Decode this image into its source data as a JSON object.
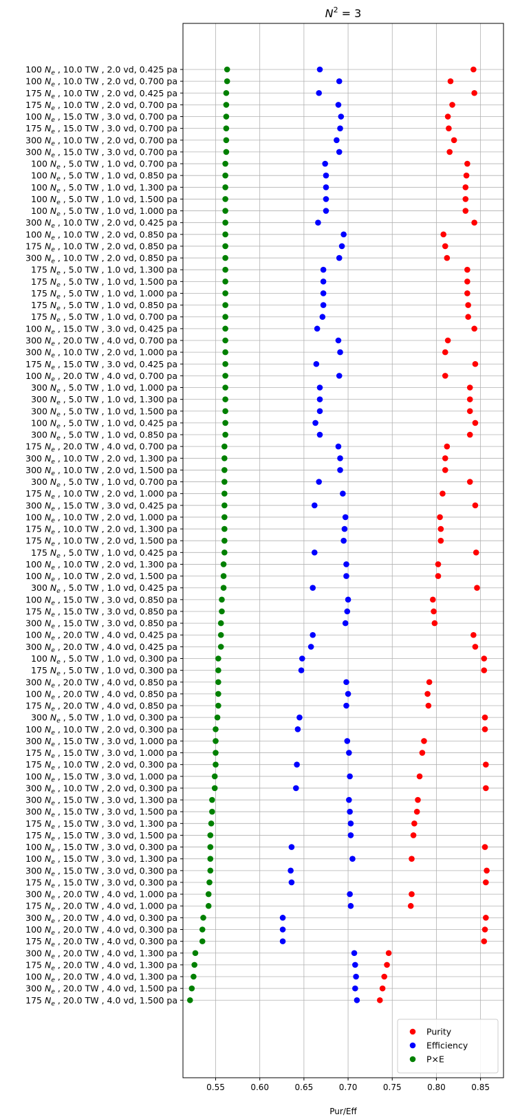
{
  "chart_data": {
    "type": "scatter",
    "title_main": "N",
    "title_sup": "2",
    "title_rest": " = 3",
    "xlabel": "Pur/Eff",
    "xlim": [
      0.513,
      0.876
    ],
    "xticks": [
      0.55,
      0.6,
      0.65,
      0.7,
      0.75,
      0.8,
      0.85
    ],
    "xtick_labels": [
      "0.55",
      "0.60",
      "0.65",
      "0.70",
      "0.75",
      "0.80",
      "0.85"
    ],
    "grid": true,
    "legend_position": "bottom-right",
    "ne_symbol": "N",
    "ne_sub": "e",
    "series_colors": {
      "purity": "#ff0000",
      "efficiency": "#0000ff",
      "pxe": "#008000"
    },
    "series": [
      {
        "key": "purity",
        "name": "Purity",
        "color": "#ff0000"
      },
      {
        "key": "efficiency",
        "name": "Efficiency",
        "color": "#0000ff"
      },
      {
        "key": "pxe",
        "name": "P×E",
        "color": "#008000"
      }
    ],
    "rows": [
      {
        "n": "100",
        "rest": ", 10.0 TW , 2.0 vd, 0.425 pa",
        "purity": 0.842,
        "efficiency": 0.668,
        "pxe": 0.563
      },
      {
        "n": "100",
        "rest": ", 10.0 TW , 2.0 vd, 0.700 pa",
        "purity": 0.816,
        "efficiency": 0.69,
        "pxe": 0.563
      },
      {
        "n": "175",
        "rest": ", 10.0 TW , 2.0 vd, 0.425 pa",
        "purity": 0.843,
        "efficiency": 0.667,
        "pxe": 0.562
      },
      {
        "n": "175",
        "rest": ", 10.0 TW , 2.0 vd, 0.700 pa",
        "purity": 0.818,
        "efficiency": 0.689,
        "pxe": 0.562
      },
      {
        "n": "100",
        "rest": ", 15.0 TW , 3.0 vd, 0.700 pa",
        "purity": 0.813,
        "efficiency": 0.692,
        "pxe": 0.562
      },
      {
        "n": "175",
        "rest": ", 15.0 TW , 3.0 vd, 0.700 pa",
        "purity": 0.814,
        "efficiency": 0.691,
        "pxe": 0.562
      },
      {
        "n": "300",
        "rest": ", 10.0 TW , 2.0 vd, 0.700 pa",
        "purity": 0.82,
        "efficiency": 0.687,
        "pxe": 0.562
      },
      {
        "n": "300",
        "rest": ", 15.0 TW , 3.0 vd, 0.700 pa",
        "purity": 0.815,
        "efficiency": 0.69,
        "pxe": 0.562
      },
      {
        "n": "100",
        "rest": ", 5.0 TW , 1.0 vd, 0.700 pa",
        "purity": 0.835,
        "efficiency": 0.674,
        "pxe": 0.561
      },
      {
        "n": "100",
        "rest": ", 5.0 TW , 1.0 vd, 0.850 pa",
        "purity": 0.834,
        "efficiency": 0.675,
        "pxe": 0.561
      },
      {
        "n": "100",
        "rest": ", 5.0 TW , 1.0 vd, 1.300 pa",
        "purity": 0.833,
        "efficiency": 0.675,
        "pxe": 0.561
      },
      {
        "n": "100",
        "rest": ", 5.0 TW , 1.0 vd, 1.500 pa",
        "purity": 0.833,
        "efficiency": 0.675,
        "pxe": 0.561
      },
      {
        "n": "100",
        "rest": ", 5.0 TW , 1.0 vd, 1.000 pa",
        "purity": 0.833,
        "efficiency": 0.675,
        "pxe": 0.561
      },
      {
        "n": "300",
        "rest": ", 10.0 TW , 2.0 vd, 0.425 pa",
        "purity": 0.843,
        "efficiency": 0.666,
        "pxe": 0.561
      },
      {
        "n": "100",
        "rest": ", 10.0 TW , 2.0 vd, 0.850 pa",
        "purity": 0.808,
        "efficiency": 0.695,
        "pxe": 0.561
      },
      {
        "n": "175",
        "rest": ", 10.0 TW , 2.0 vd, 0.850 pa",
        "purity": 0.81,
        "efficiency": 0.693,
        "pxe": 0.561
      },
      {
        "n": "300",
        "rest": ", 10.0 TW , 2.0 vd, 0.850 pa",
        "purity": 0.812,
        "efficiency": 0.69,
        "pxe": 0.561
      },
      {
        "n": "175",
        "rest": ", 5.0 TW , 1.0 vd, 1.300 pa",
        "purity": 0.835,
        "efficiency": 0.672,
        "pxe": 0.561
      },
      {
        "n": "175",
        "rest": ", 5.0 TW , 1.0 vd, 1.500 pa",
        "purity": 0.835,
        "efficiency": 0.672,
        "pxe": 0.561
      },
      {
        "n": "175",
        "rest": ", 5.0 TW , 1.0 vd, 1.000 pa",
        "purity": 0.835,
        "efficiency": 0.672,
        "pxe": 0.561
      },
      {
        "n": "175",
        "rest": ", 5.0 TW , 1.0 vd, 0.850 pa",
        "purity": 0.836,
        "efficiency": 0.672,
        "pxe": 0.561
      },
      {
        "n": "175",
        "rest": ", 5.0 TW , 1.0 vd, 0.700 pa",
        "purity": 0.836,
        "efficiency": 0.671,
        "pxe": 0.561
      },
      {
        "n": "100",
        "rest": ", 15.0 TW , 3.0 vd, 0.425 pa",
        "purity": 0.843,
        "efficiency": 0.665,
        "pxe": 0.561
      },
      {
        "n": "300",
        "rest": ", 20.0 TW , 4.0 vd, 0.700 pa",
        "purity": 0.813,
        "efficiency": 0.689,
        "pxe": 0.561
      },
      {
        "n": "300",
        "rest": ", 10.0 TW , 2.0 vd, 1.000 pa",
        "purity": 0.81,
        "efficiency": 0.691,
        "pxe": 0.561
      },
      {
        "n": "175",
        "rest": ", 15.0 TW , 3.0 vd, 0.425 pa",
        "purity": 0.844,
        "efficiency": 0.664,
        "pxe": 0.561
      },
      {
        "n": "100",
        "rest": ", 20.0 TW , 4.0 vd, 0.700 pa",
        "purity": 0.81,
        "efficiency": 0.69,
        "pxe": 0.561
      },
      {
        "n": "300",
        "rest": ", 5.0 TW , 1.0 vd, 1.000 pa",
        "purity": 0.838,
        "efficiency": 0.668,
        "pxe": 0.561
      },
      {
        "n": "300",
        "rest": ", 5.0 TW , 1.0 vd, 1.300 pa",
        "purity": 0.838,
        "efficiency": 0.668,
        "pxe": 0.561
      },
      {
        "n": "300",
        "rest": ", 5.0 TW , 1.0 vd, 1.500 pa",
        "purity": 0.838,
        "efficiency": 0.668,
        "pxe": 0.561
      },
      {
        "n": "100",
        "rest": ", 5.0 TW , 1.0 vd, 0.425 pa",
        "purity": 0.844,
        "efficiency": 0.663,
        "pxe": 0.561
      },
      {
        "n": "300",
        "rest": ", 5.0 TW , 1.0 vd, 0.850 pa",
        "purity": 0.838,
        "efficiency": 0.668,
        "pxe": 0.561
      },
      {
        "n": "175",
        "rest": ", 20.0 TW , 4.0 vd, 0.700 pa",
        "purity": 0.812,
        "efficiency": 0.689,
        "pxe": 0.56
      },
      {
        "n": "300",
        "rest": ", 10.0 TW , 2.0 vd, 1.300 pa",
        "purity": 0.81,
        "efficiency": 0.691,
        "pxe": 0.56
      },
      {
        "n": "300",
        "rest": ", 10.0 TW , 2.0 vd, 1.500 pa",
        "purity": 0.81,
        "efficiency": 0.691,
        "pxe": 0.56
      },
      {
        "n": "300",
        "rest": ", 5.0 TW , 1.0 vd, 0.700 pa",
        "purity": 0.838,
        "efficiency": 0.667,
        "pxe": 0.56
      },
      {
        "n": "175",
        "rest": ", 10.0 TW , 2.0 vd, 1.000 pa",
        "purity": 0.807,
        "efficiency": 0.694,
        "pxe": 0.56
      },
      {
        "n": "300",
        "rest": ", 15.0 TW , 3.0 vd, 0.425 pa",
        "purity": 0.844,
        "efficiency": 0.662,
        "pxe": 0.56
      },
      {
        "n": "100",
        "rest": ", 10.0 TW , 2.0 vd, 1.000 pa",
        "purity": 0.804,
        "efficiency": 0.697,
        "pxe": 0.56
      },
      {
        "n": "175",
        "rest": ", 10.0 TW , 2.0 vd, 1.300 pa",
        "purity": 0.805,
        "efficiency": 0.696,
        "pxe": 0.56
      },
      {
        "n": "175",
        "rest": ", 10.0 TW , 2.0 vd, 1.500 pa",
        "purity": 0.805,
        "efficiency": 0.695,
        "pxe": 0.56
      },
      {
        "n": "175",
        "rest": ", 5.0 TW , 1.0 vd, 0.425 pa",
        "purity": 0.845,
        "efficiency": 0.662,
        "pxe": 0.56
      },
      {
        "n": "100",
        "rest": ", 10.0 TW , 2.0 vd, 1.300 pa",
        "purity": 0.802,
        "efficiency": 0.698,
        "pxe": 0.559
      },
      {
        "n": "100",
        "rest": ", 10.0 TW , 2.0 vd, 1.500 pa",
        "purity": 0.802,
        "efficiency": 0.698,
        "pxe": 0.559
      },
      {
        "n": "300",
        "rest": ", 5.0 TW , 1.0 vd, 0.425 pa",
        "purity": 0.846,
        "efficiency": 0.66,
        "pxe": 0.559
      },
      {
        "n": "100",
        "rest": ", 15.0 TW , 3.0 vd, 0.850 pa",
        "purity": 0.796,
        "efficiency": 0.7,
        "pxe": 0.557
      },
      {
        "n": "175",
        "rest": ", 15.0 TW , 3.0 vd, 0.850 pa",
        "purity": 0.797,
        "efficiency": 0.699,
        "pxe": 0.557
      },
      {
        "n": "300",
        "rest": ", 15.0 TW , 3.0 vd, 0.850 pa",
        "purity": 0.798,
        "efficiency": 0.697,
        "pxe": 0.556
      },
      {
        "n": "100",
        "rest": ", 20.0 TW , 4.0 vd, 0.425 pa",
        "purity": 0.842,
        "efficiency": 0.66,
        "pxe": 0.556
      },
      {
        "n": "300",
        "rest": ", 20.0 TW , 4.0 vd, 0.425 pa",
        "purity": 0.844,
        "efficiency": 0.658,
        "pxe": 0.556
      },
      {
        "n": "100",
        "rest": ", 5.0 TW , 1.0 vd, 0.300 pa",
        "purity": 0.854,
        "efficiency": 0.648,
        "pxe": 0.553
      },
      {
        "n": "175",
        "rest": ", 5.0 TW , 1.0 vd, 0.300 pa",
        "purity": 0.854,
        "efficiency": 0.647,
        "pxe": 0.553
      },
      {
        "n": "300",
        "rest": ", 20.0 TW , 4.0 vd, 0.850 pa",
        "purity": 0.792,
        "efficiency": 0.698,
        "pxe": 0.553
      },
      {
        "n": "100",
        "rest": ", 20.0 TW , 4.0 vd, 0.850 pa",
        "purity": 0.79,
        "efficiency": 0.7,
        "pxe": 0.553
      },
      {
        "n": "175",
        "rest": ", 20.0 TW , 4.0 vd, 0.850 pa",
        "purity": 0.791,
        "efficiency": 0.698,
        "pxe": 0.553
      },
      {
        "n": "300",
        "rest": ", 5.0 TW , 1.0 vd, 0.300 pa",
        "purity": 0.855,
        "efficiency": 0.645,
        "pxe": 0.552
      },
      {
        "n": "100",
        "rest": ", 10.0 TW , 2.0 vd, 0.300 pa",
        "purity": 0.855,
        "efficiency": 0.643,
        "pxe": 0.55
      },
      {
        "n": "300",
        "rest": ", 15.0 TW , 3.0 vd, 1.000 pa",
        "purity": 0.786,
        "efficiency": 0.699,
        "pxe": 0.55
      },
      {
        "n": "175",
        "rest": ", 15.0 TW , 3.0 vd, 1.000 pa",
        "purity": 0.784,
        "efficiency": 0.701,
        "pxe": 0.55
      },
      {
        "n": "175",
        "rest": ", 10.0 TW , 2.0 vd, 0.300 pa",
        "purity": 0.856,
        "efficiency": 0.642,
        "pxe": 0.55
      },
      {
        "n": "100",
        "rest": ", 15.0 TW , 3.0 vd, 1.000 pa",
        "purity": 0.781,
        "efficiency": 0.702,
        "pxe": 0.549
      },
      {
        "n": "300",
        "rest": ", 10.0 TW , 2.0 vd, 0.300 pa",
        "purity": 0.856,
        "efficiency": 0.641,
        "pxe": 0.549
      },
      {
        "n": "300",
        "rest": ", 15.0 TW , 3.0 vd, 1.300 pa",
        "purity": 0.779,
        "efficiency": 0.701,
        "pxe": 0.546
      },
      {
        "n": "300",
        "rest": ", 15.0 TW , 3.0 vd, 1.500 pa",
        "purity": 0.778,
        "efficiency": 0.702,
        "pxe": 0.546
      },
      {
        "n": "175",
        "rest": ", 15.0 TW , 3.0 vd, 1.300 pa",
        "purity": 0.775,
        "efficiency": 0.703,
        "pxe": 0.545
      },
      {
        "n": "175",
        "rest": ", 15.0 TW , 3.0 vd, 1.500 pa",
        "purity": 0.774,
        "efficiency": 0.703,
        "pxe": 0.544
      },
      {
        "n": "100",
        "rest": ", 15.0 TW , 3.0 vd, 0.300 pa",
        "purity": 0.855,
        "efficiency": 0.636,
        "pxe": 0.544
      },
      {
        "n": "100",
        "rest": ", 15.0 TW , 3.0 vd, 1.300 pa",
        "purity": 0.772,
        "efficiency": 0.705,
        "pxe": 0.544
      },
      {
        "n": "300",
        "rest": ", 15.0 TW , 3.0 vd, 0.300 pa",
        "purity": 0.857,
        "efficiency": 0.635,
        "pxe": 0.544
      },
      {
        "n": "175",
        "rest": ", 15.0 TW , 3.0 vd, 0.300 pa",
        "purity": 0.856,
        "efficiency": 0.636,
        "pxe": 0.543
      },
      {
        "n": "300",
        "rest": ", 20.0 TW , 4.0 vd, 1.000 pa",
        "purity": 0.772,
        "efficiency": 0.702,
        "pxe": 0.542
      },
      {
        "n": "175",
        "rest": ", 20.0 TW , 4.0 vd, 1.000 pa",
        "purity": 0.771,
        "efficiency": 0.703,
        "pxe": 0.542
      },
      {
        "n": "300",
        "rest": ", 20.0 TW , 4.0 vd, 0.300 pa",
        "purity": 0.856,
        "efficiency": 0.626,
        "pxe": 0.536
      },
      {
        "n": "100",
        "rest": ", 20.0 TW , 4.0 vd, 0.300 pa",
        "purity": 0.855,
        "efficiency": 0.626,
        "pxe": 0.535
      },
      {
        "n": "175",
        "rest": ", 20.0 TW , 4.0 vd, 0.300 pa",
        "purity": 0.854,
        "efficiency": 0.626,
        "pxe": 0.535
      },
      {
        "n": "300",
        "rest": ", 20.0 TW , 4.0 vd, 1.300 pa",
        "purity": 0.746,
        "efficiency": 0.707,
        "pxe": 0.527
      },
      {
        "n": "175",
        "rest": ", 20.0 TW , 4.0 vd, 1.300 pa",
        "purity": 0.744,
        "efficiency": 0.708,
        "pxe": 0.526
      },
      {
        "n": "100",
        "rest": ", 20.0 TW , 4.0 vd, 1.300 pa",
        "purity": 0.741,
        "efficiency": 0.709,
        "pxe": 0.525
      },
      {
        "n": "300",
        "rest": ", 20.0 TW , 4.0 vd, 1.500 pa",
        "purity": 0.739,
        "efficiency": 0.708,
        "pxe": 0.523
      },
      {
        "n": "175",
        "rest": ", 20.0 TW , 4.0 vd, 1.500 pa",
        "purity": 0.736,
        "efficiency": 0.71,
        "pxe": 0.521
      }
    ]
  }
}
